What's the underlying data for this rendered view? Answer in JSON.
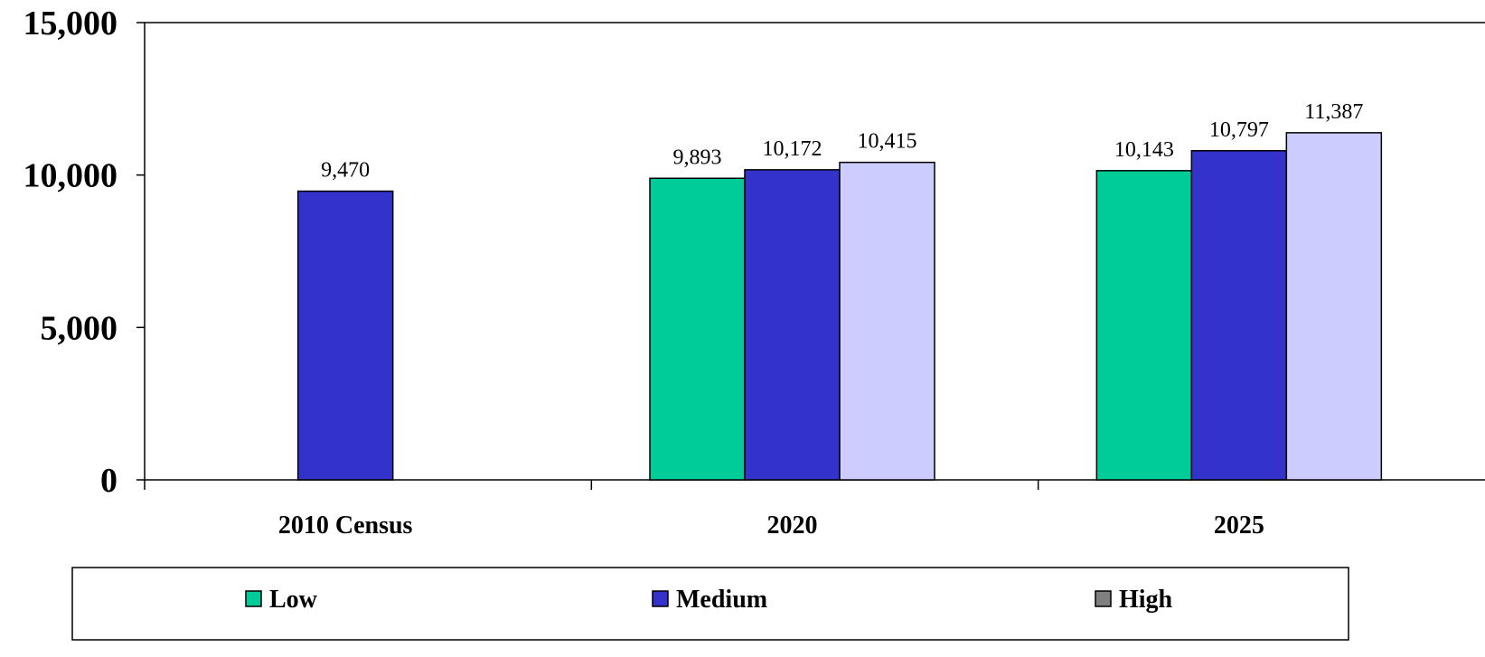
{
  "chart_data": {
    "type": "bar",
    "categories": [
      "2010 Census",
      "2020",
      "2025"
    ],
    "series": [
      {
        "name": "Low",
        "color": "#00CC99",
        "values": [
          null,
          9893,
          10143
        ],
        "labels": [
          "",
          "9,893",
          "10,143"
        ]
      },
      {
        "name": "Medium",
        "color": "#3333CC",
        "values": [
          9470,
          10172,
          10797
        ],
        "labels": [
          "9,470",
          "10,172",
          "10,797"
        ]
      },
      {
        "name": "High",
        "color": "#CCCCFF",
        "values": [
          null,
          10415,
          11387
        ],
        "labels": [
          "",
          "10,415",
          "11,387"
        ]
      }
    ],
    "legend_swatch_colors": [
      "#00CC99",
      "#3333CC",
      "#808080"
    ],
    "y_ticks": [
      0,
      5000,
      10000,
      15000
    ],
    "y_tick_labels": [
      "0",
      "5,000",
      "10,000",
      "15,000"
    ],
    "ylim": [
      0,
      15000
    ],
    "grid": false,
    "legend_position": "bottom"
  }
}
